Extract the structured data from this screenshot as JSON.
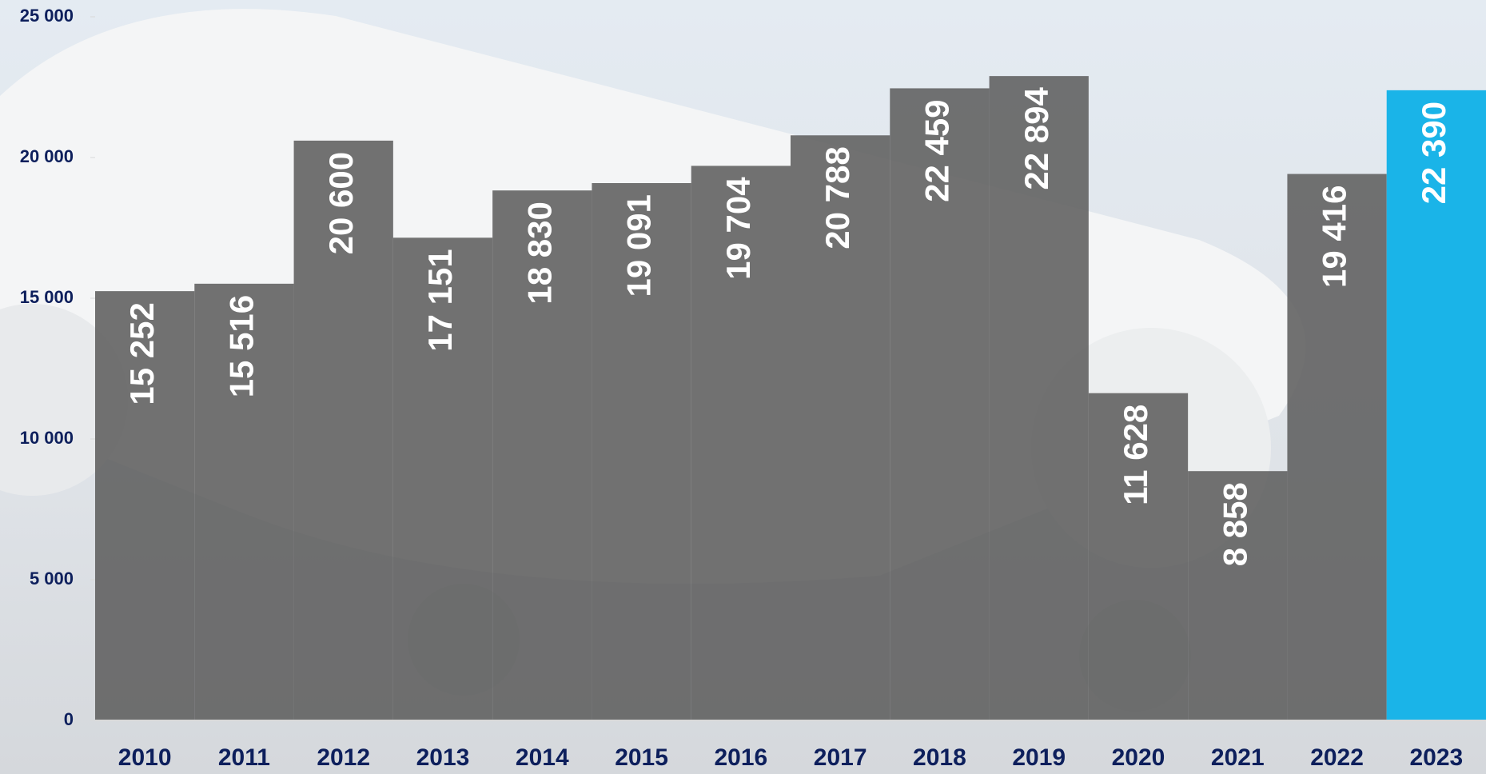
{
  "chart_data": {
    "type": "bar",
    "categories": [
      "2010",
      "2011",
      "2012",
      "2013",
      "2014",
      "2015",
      "2016",
      "2017",
      "2018",
      "2019",
      "2020",
      "2021",
      "2022",
      "2023"
    ],
    "values": [
      15252,
      15516,
      20600,
      17151,
      18830,
      19091,
      19704,
      20788,
      22459,
      22894,
      11628,
      8858,
      19416,
      22390
    ],
    "value_labels": [
      "15 252",
      "15 516",
      "20 600",
      "17 151",
      "18 830",
      "19 091",
      "19 704",
      "20 788",
      "22 459",
      "22 894",
      "11 628",
      "8 858",
      "19 416",
      "22 390"
    ],
    "colors": [
      "#5f5f5f",
      "#5f5f5f",
      "#5f5f5f",
      "#5f5f5f",
      "#5f5f5f",
      "#5f5f5f",
      "#5f5f5f",
      "#5f5f5f",
      "#5f5f5f",
      "#5f5f5f",
      "#5f5f5f",
      "#5f5f5f",
      "#5f5f5f",
      "#1ab4e8"
    ],
    "ylim": [
      0,
      25000
    ],
    "yticks": [
      {
        "value": 0,
        "label": "0"
      },
      {
        "value": 5000,
        "label": "5 000"
      },
      {
        "value": 10000,
        "label": "10 000"
      },
      {
        "value": 15000,
        "label": "15 000"
      },
      {
        "value": 20000,
        "label": "20 000"
      },
      {
        "value": 25000,
        "label": "25 000"
      }
    ]
  }
}
